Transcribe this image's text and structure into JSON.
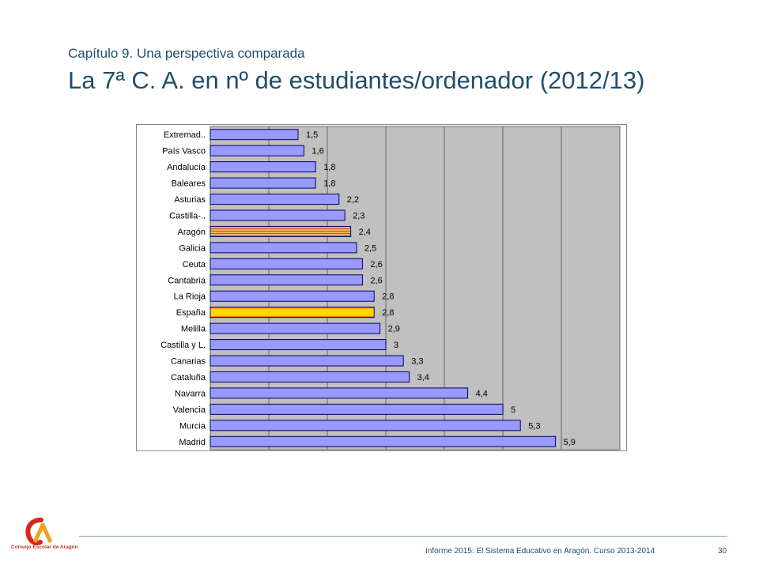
{
  "header": {
    "subtitle": "Capítulo 9. Una perspectiva comparada",
    "title": "La 7ª C. A. en nº de estudiantes/ordenador  (2012/13)"
  },
  "chart_data": {
    "type": "bar",
    "orientation": "horizontal",
    "categories": [
      "Extremad..",
      "País Vasco",
      "Andalucía",
      "Baleares",
      "Asturias",
      "Castilla-..",
      "Aragón",
      "Galicia",
      "Ceuta",
      "Cantabria",
      "La Rioja",
      "España",
      "Melilla",
      "Castilla y L.",
      "Canarias",
      "Cataluña",
      "Navarra",
      "Valencia",
      "Murcia",
      "Madrid"
    ],
    "values": [
      1.5,
      1.6,
      1.8,
      1.8,
      2.2,
      2.3,
      2.4,
      2.5,
      2.6,
      2.6,
      2.8,
      2.8,
      2.9,
      3,
      3.3,
      3.4,
      4.4,
      5,
      5.3,
      5.9
    ],
    "value_labels": [
      "1,5",
      "1,6",
      "1,8",
      "1,8",
      "2,2",
      "2,3",
      "2,4",
      "2,5",
      "2,6",
      "2,6",
      "2,8",
      "2,8",
      "2,9",
      "3",
      "3,3",
      "3,4",
      "4,4",
      "5",
      "5,3",
      "5,9"
    ],
    "highlight": {
      "Aragón": "orange-striped",
      "España": "yellow-gradient"
    },
    "xlim": [
      0,
      7
    ],
    "grid": true,
    "colors": {
      "bar": "#9999ff",
      "plot_bg": "#c0c0c0",
      "aragon": "#e8902a",
      "espana": "#ffd700"
    }
  },
  "footer": {
    "text": "Informe 2015: El Sistema Educativo en Aragón. Curso 2013-2014",
    "page": "30",
    "logo_text": "Consejo Escolar de Aragón"
  }
}
